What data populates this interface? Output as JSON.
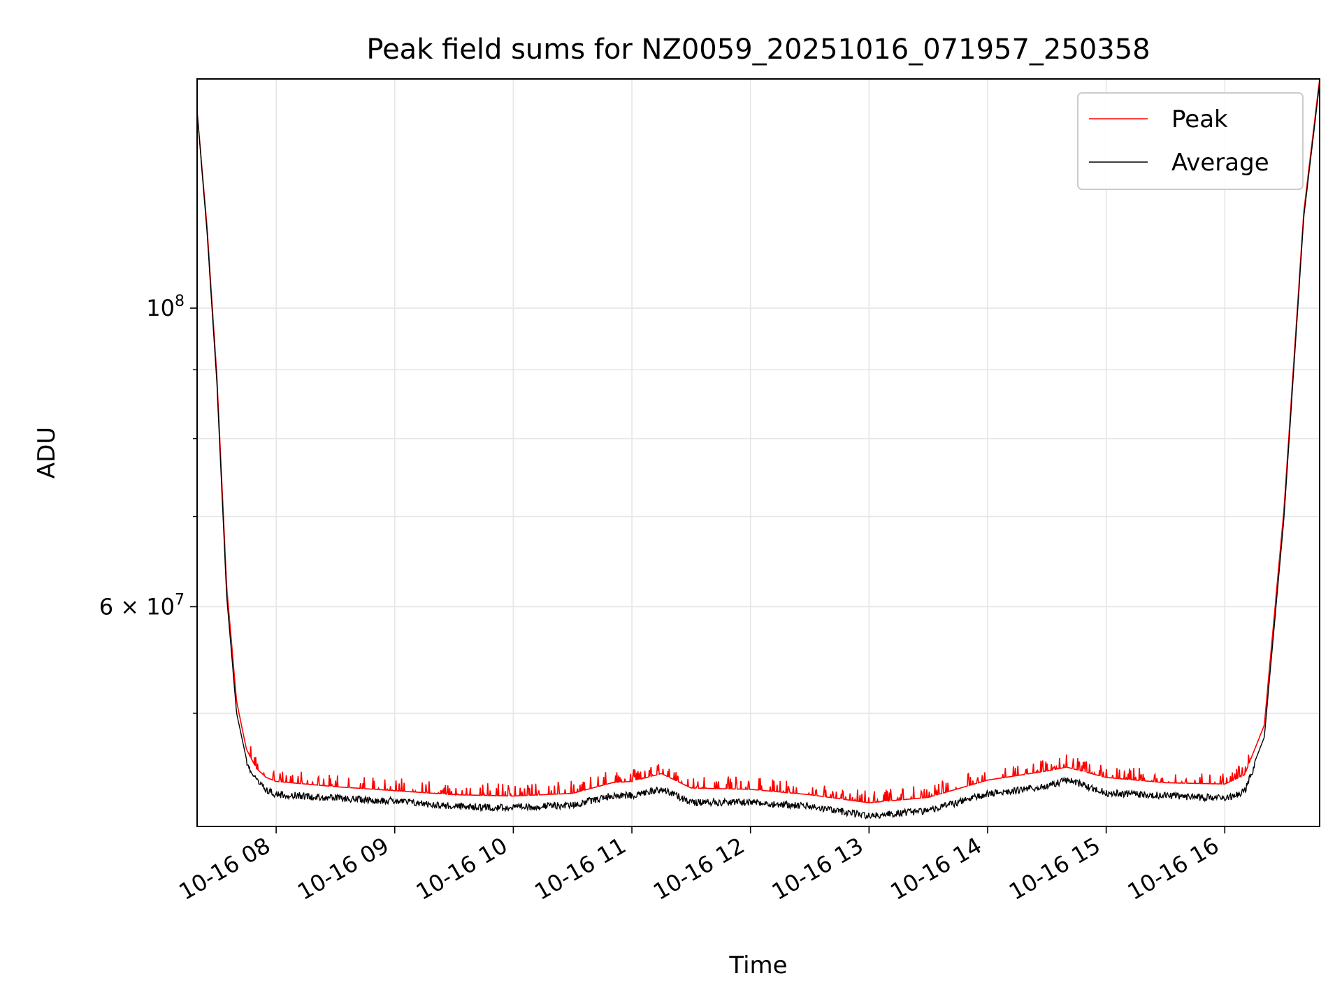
{
  "chart_data": {
    "type": "line",
    "title": "Peak field sums for NZ0059_20251016_071957_250358",
    "xlabel": "Time",
    "ylabel": "ADU",
    "x_axis": "datetime",
    "xlim": [
      "2025-10-16T07:20:00",
      "2025-10-16T16:48:00"
    ],
    "x_ticks": [
      {
        "value": "2025-10-16T08:00:00",
        "label": "10-16 08"
      },
      {
        "value": "2025-10-16T09:00:00",
        "label": "10-16 09"
      },
      {
        "value": "2025-10-16T10:00:00",
        "label": "10-16 10"
      },
      {
        "value": "2025-10-16T11:00:00",
        "label": "10-16 11"
      },
      {
        "value": "2025-10-16T12:00:00",
        "label": "10-16 12"
      },
      {
        "value": "2025-10-16T13:00:00",
        "label": "10-16 13"
      },
      {
        "value": "2025-10-16T14:00:00",
        "label": "10-16 14"
      },
      {
        "value": "2025-10-16T15:00:00",
        "label": "10-16 15"
      },
      {
        "value": "2025-10-16T16:00:00",
        "label": "10-16 16"
      }
    ],
    "y_scale": "log",
    "ylim": [
      41200000,
      148000000
    ],
    "y_major_ticks": [
      {
        "value": 100000000,
        "base": "10",
        "exp": "8"
      },
      {
        "value": 60000000,
        "base": "6 × 10",
        "exp": "7"
      }
    ],
    "y_minor_ticks": [
      50000000,
      70000000,
      80000000,
      90000000
    ],
    "grid": true,
    "legend_position": "top-right",
    "series": [
      {
        "name": "Peak",
        "color": "#ff0000",
        "points": [
          [
            "2025-10-16T07:20:00",
            140000000
          ],
          [
            "2025-10-16T07:25:00",
            115000000
          ],
          [
            "2025-10-16T07:30:00",
            89000000
          ],
          [
            "2025-10-16T07:35:00",
            62000000
          ],
          [
            "2025-10-16T07:40:00",
            51000000
          ],
          [
            "2025-10-16T07:45:00",
            47000000
          ],
          [
            "2025-10-16T07:50:00",
            45500000
          ],
          [
            "2025-10-16T07:55:00",
            44800000
          ],
          [
            "2025-10-16T08:00:00",
            44500000
          ],
          [
            "2025-10-16T08:30:00",
            44100000
          ],
          [
            "2025-10-16T09:00:00",
            43800000
          ],
          [
            "2025-10-16T09:30:00",
            43500000
          ],
          [
            "2025-10-16T10:00:00",
            43400000
          ],
          [
            "2025-10-16T10:30:00",
            43600000
          ],
          [
            "2025-10-16T10:50:00",
            44400000
          ],
          [
            "2025-10-16T11:00:00",
            44500000
          ],
          [
            "2025-10-16T11:15:00",
            45100000
          ],
          [
            "2025-10-16T11:30:00",
            44000000
          ],
          [
            "2025-10-16T12:00:00",
            43900000
          ],
          [
            "2025-10-16T12:30:00",
            43500000
          ],
          [
            "2025-10-16T13:00:00",
            42900000
          ],
          [
            "2025-10-16T13:30:00",
            43300000
          ],
          [
            "2025-10-16T14:00:00",
            44600000
          ],
          [
            "2025-10-16T14:30:00",
            45300000
          ],
          [
            "2025-10-16T14:40:00",
            45600000
          ],
          [
            "2025-10-16T15:00:00",
            44800000
          ],
          [
            "2025-10-16T15:30:00",
            44400000
          ],
          [
            "2025-10-16T16:00:00",
            44300000
          ],
          [
            "2025-10-16T16:10:00",
            45000000
          ],
          [
            "2025-10-16T16:20:00",
            49000000
          ],
          [
            "2025-10-16T16:30:00",
            71000000
          ],
          [
            "2025-10-16T16:40:00",
            118000000
          ],
          [
            "2025-10-16T16:48:00",
            148000000
          ]
        ]
      },
      {
        "name": "Average",
        "color": "#000000",
        "points": [
          [
            "2025-10-16T07:20:00",
            140000000
          ],
          [
            "2025-10-16T07:25:00",
            114000000
          ],
          [
            "2025-10-16T07:30:00",
            88000000
          ],
          [
            "2025-10-16T07:35:00",
            61000000
          ],
          [
            "2025-10-16T07:40:00",
            50000000
          ],
          [
            "2025-10-16T07:45:00",
            46200000
          ],
          [
            "2025-10-16T07:50:00",
            44800000
          ],
          [
            "2025-10-16T07:55:00",
            44100000
          ],
          [
            "2025-10-16T08:00:00",
            43800000
          ],
          [
            "2025-10-16T08:30:00",
            43500000
          ],
          [
            "2025-10-16T09:00:00",
            43300000
          ],
          [
            "2025-10-16T09:30:00",
            42900000
          ],
          [
            "2025-10-16T10:00:00",
            42800000
          ],
          [
            "2025-10-16T10:30:00",
            43000000
          ],
          [
            "2025-10-16T10:50:00",
            43700000
          ],
          [
            "2025-10-16T11:00:00",
            43700000
          ],
          [
            "2025-10-16T11:15:00",
            44200000
          ],
          [
            "2025-10-16T11:30:00",
            43200000
          ],
          [
            "2025-10-16T12:00:00",
            43200000
          ],
          [
            "2025-10-16T12:30:00",
            42900000
          ],
          [
            "2025-10-16T13:00:00",
            42200000
          ],
          [
            "2025-10-16T13:30:00",
            42600000
          ],
          [
            "2025-10-16T14:00:00",
            43800000
          ],
          [
            "2025-10-16T14:30:00",
            44400000
          ],
          [
            "2025-10-16T14:40:00",
            44900000
          ],
          [
            "2025-10-16T15:00:00",
            43900000
          ],
          [
            "2025-10-16T15:30:00",
            43700000
          ],
          [
            "2025-10-16T16:00:00",
            43500000
          ],
          [
            "2025-10-16T16:10:00",
            44000000
          ],
          [
            "2025-10-16T16:20:00",
            48000000
          ],
          [
            "2025-10-16T16:30:00",
            70000000
          ],
          [
            "2025-10-16T16:40:00",
            117000000
          ],
          [
            "2025-10-16T16:48:00",
            147000000
          ]
        ]
      }
    ]
  }
}
